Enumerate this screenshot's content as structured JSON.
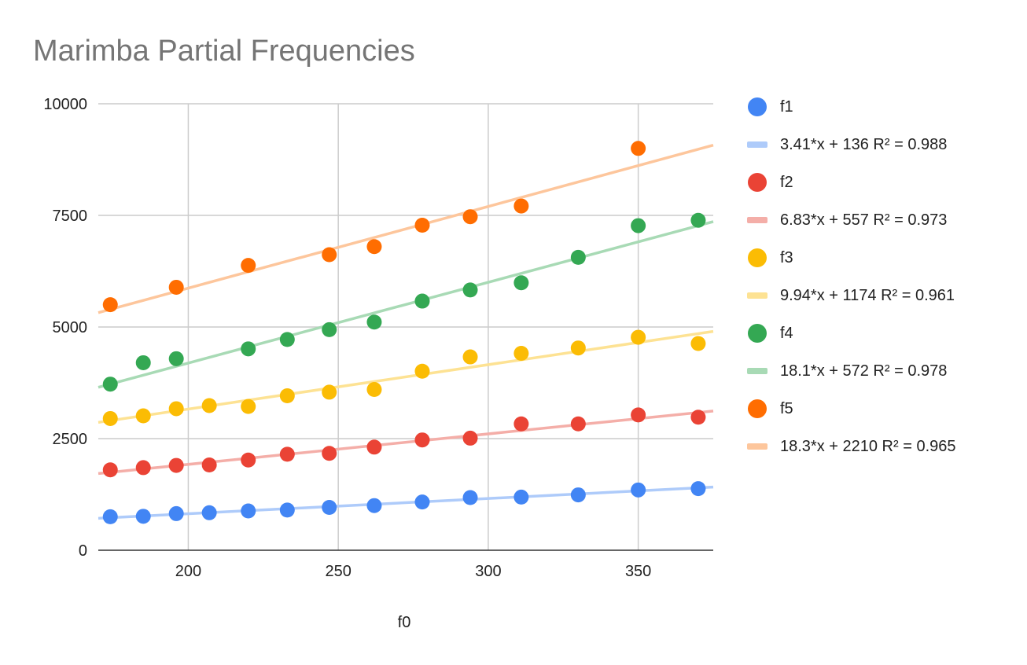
{
  "chart_data": {
    "type": "scatter",
    "title": "Marimba Partial Frequencies",
    "xlabel": "f0",
    "ylabel": "",
    "xlim": [
      170,
      375
    ],
    "ylim": [
      0,
      10000
    ],
    "x_ticks": [
      200,
      250,
      300,
      350
    ],
    "y_ticks": [
      0,
      2500,
      5000,
      7500,
      10000
    ],
    "grid": true,
    "legend_position": "right",
    "x": [
      174,
      185,
      196,
      207,
      220,
      233,
      247,
      262,
      278,
      294,
      311,
      330,
      350,
      370
    ],
    "series": [
      {
        "name": "f1",
        "color": "#4285f4",
        "trend_color": "#aecbfa",
        "values": [
          750,
          760,
          820,
          840,
          880,
          900,
          960,
          1000,
          1080,
          1180,
          1190,
          1240,
          1350,
          1380
        ],
        "trendline": {
          "slope": 3.41,
          "intercept": 136,
          "label": "3.41*x + 136 R² = 0.988"
        }
      },
      {
        "name": "f2",
        "color": "#ea4335",
        "trend_color": "#f4aea8",
        "values": [
          1800,
          1850,
          1900,
          1910,
          2020,
          2150,
          2170,
          2310,
          2470,
          2510,
          2830,
          2830,
          3030,
          2980
        ],
        "trendline": {
          "slope": 6.83,
          "intercept": 557,
          "label": "6.83*x + 557 R² = 0.973"
        }
      },
      {
        "name": "f3",
        "color": "#fbbc04",
        "trend_color": "#fde293",
        "values": [
          2950,
          3010,
          3170,
          3240,
          3220,
          3460,
          3540,
          3600,
          4010,
          4330,
          4410,
          4530,
          4770,
          4630
        ],
        "trendline": {
          "slope": 9.94,
          "intercept": 1174,
          "label": "9.94*x + 1174 R² = 0.961"
        }
      },
      {
        "name": "f4",
        "color": "#34a853",
        "trend_color": "#a8dab5",
        "values": [
          3720,
          4200,
          4290,
          null,
          4510,
          4720,
          4940,
          5110,
          5580,
          5830,
          5990,
          6560,
          7270,
          7390
        ],
        "trendline": {
          "slope": 18.1,
          "intercept": 572,
          "label": "18.1*x + 572 R² = 0.978"
        }
      },
      {
        "name": "f5",
        "color": "#ff6d01",
        "trend_color": "#fdc69c",
        "values": [
          5500,
          null,
          5890,
          null,
          6380,
          null,
          6620,
          6800,
          7280,
          7470,
          7710,
          null,
          9000,
          null
        ],
        "trendline": {
          "slope": 18.3,
          "intercept": 2210,
          "label": "18.3*x + 2210 R² = 0.965"
        }
      }
    ]
  }
}
